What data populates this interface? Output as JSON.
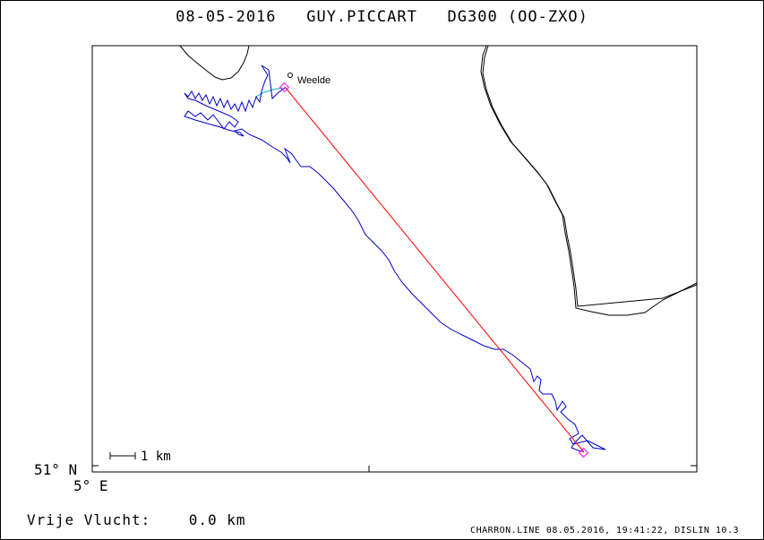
{
  "title": "08-05-2016   GUY.PICCART   DG300 (OO-ZXO)",
  "place_label": "Weelde",
  "scale_label": "1 km",
  "lat_label": "51° N",
  "lon_label": "5° E",
  "stat_label": "Vrije Vlucht:",
  "stat_value": "0.0 km",
  "footer": "CHARRON.LINE 08.05.2016, 19:41:22, DISLIN 10.3",
  "colors": {
    "track": "#0000cc",
    "task_line": "#ff0000",
    "start_track": "#00b0d0",
    "markers": "#ff00ff",
    "border": "#000000"
  }
}
